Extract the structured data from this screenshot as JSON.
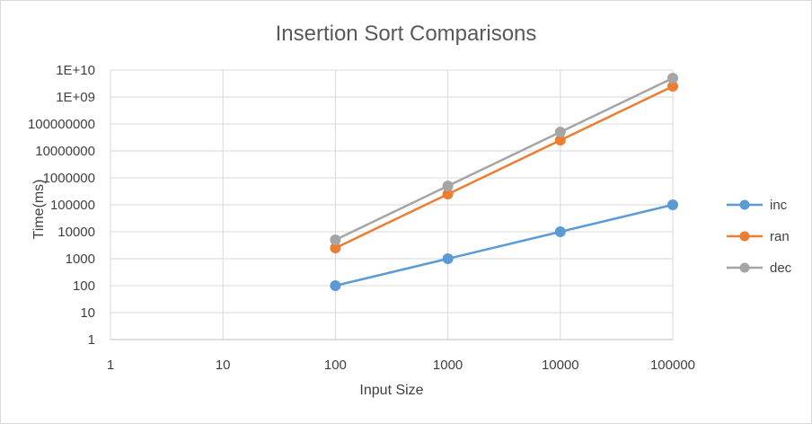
{
  "chart_data": {
    "type": "line",
    "title": "Insertion Sort Comparisons",
    "xlabel": "Input Size",
    "ylabel": "Time(ms)",
    "x_scale": "log",
    "y_scale": "log",
    "xlim": [
      1,
      100000
    ],
    "ylim": [
      1,
      10000000000
    ],
    "x_ticks": [
      "1",
      "10",
      "100",
      "1000",
      "10000",
      "100000"
    ],
    "y_ticks": [
      "1",
      "10",
      "100",
      "1000",
      "10000",
      "100000",
      "1000000",
      "10000000",
      "100000000",
      "1E+09",
      "1E+10"
    ],
    "grid": true,
    "legend_position": "right",
    "series": [
      {
        "name": "inc",
        "color": "#5b9bd5",
        "x": [
          100,
          1000,
          10000,
          100000
        ],
        "y": [
          100,
          1000,
          10000,
          100000
        ]
      },
      {
        "name": "ran",
        "color": "#ed7d31",
        "x": [
          100,
          1000,
          10000,
          100000
        ],
        "y": [
          2500,
          250000,
          25000000,
          2500000000
        ]
      },
      {
        "name": "dec",
        "color": "#a5a5a5",
        "x": [
          100,
          1000,
          10000,
          100000
        ],
        "y": [
          5000,
          500000,
          50000000,
          5000000000
        ]
      }
    ]
  }
}
